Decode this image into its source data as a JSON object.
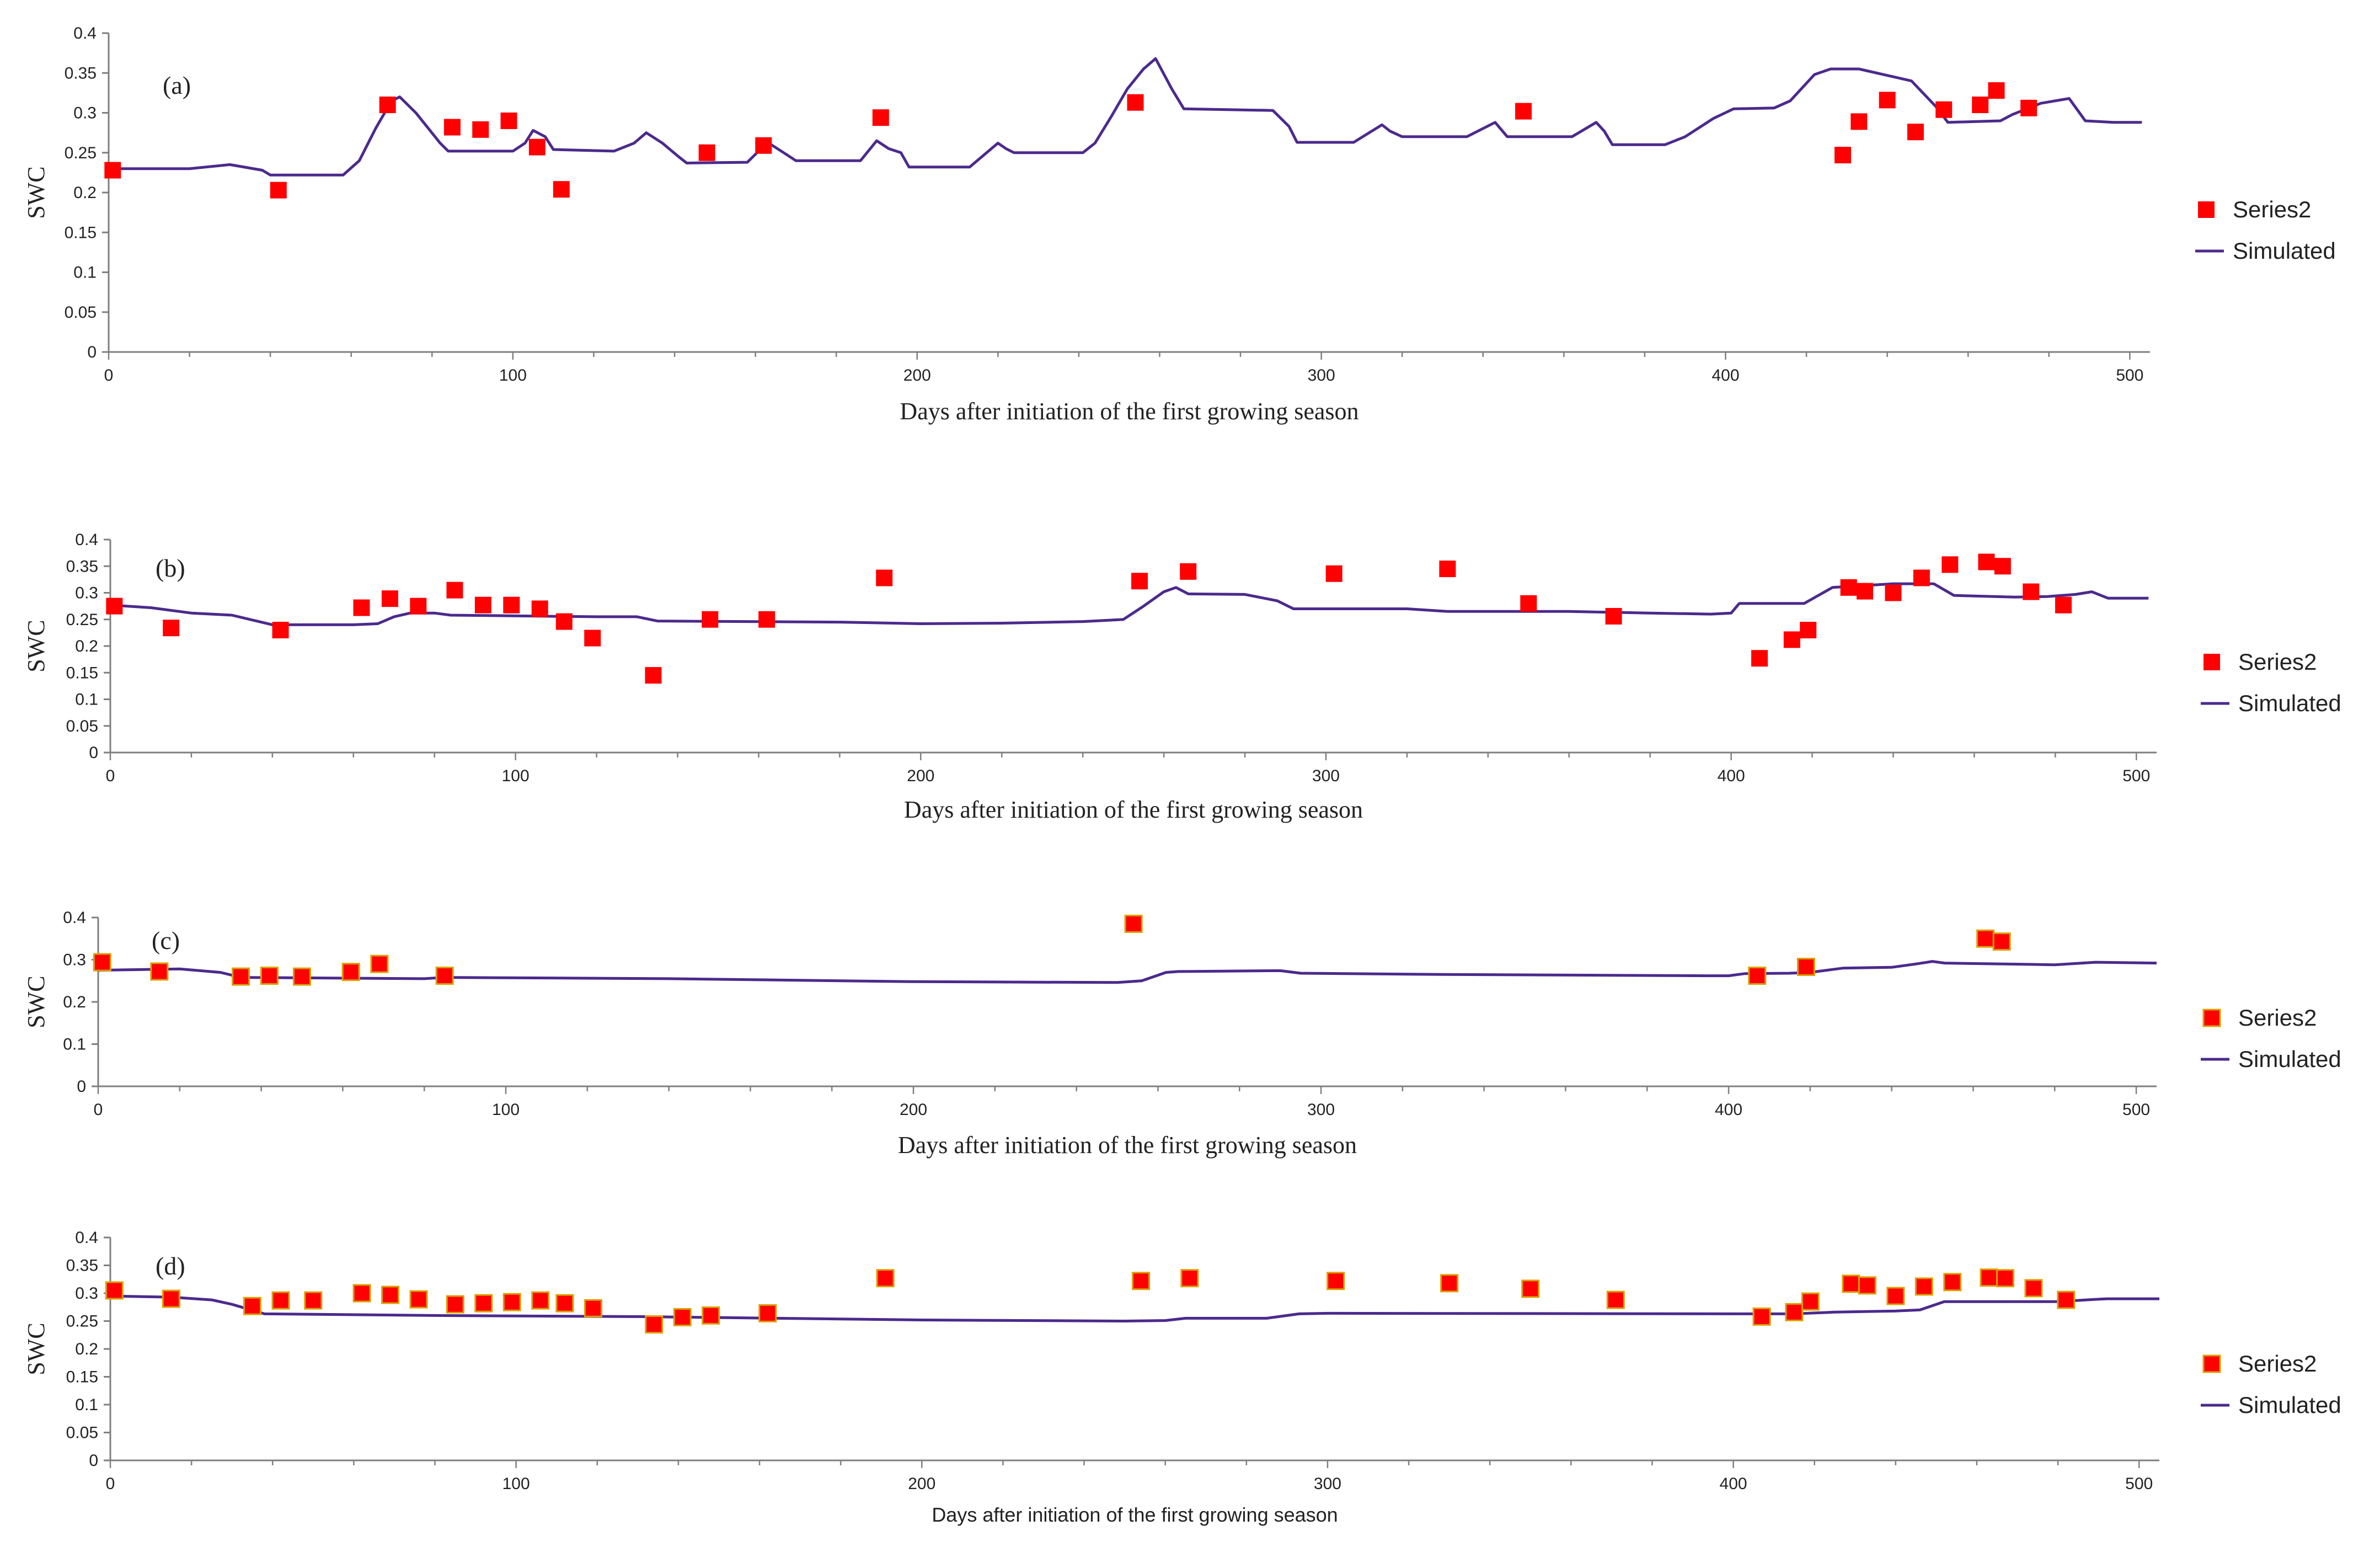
{
  "figure": {
    "colors": {
      "observed": "#ff0000",
      "observed_edge_cd": "#d9a000",
      "simulated": "#4b2a8c",
      "axis": "#7f7f7f"
    }
  },
  "chart_data": [
    {
      "type": "scatter+line",
      "panel_label": "(a)",
      "ylabel": "SWC",
      "xlabel": "Days after initiation of the first growing season",
      "xlim": [
        0,
        505
      ],
      "ylim": [
        0,
        0.4
      ],
      "xticks": [
        "0",
        "100",
        "200",
        "300",
        "400",
        "500"
      ],
      "yticks": [
        "0",
        "0.05",
        "0.1",
        "0.15",
        "0.2",
        "0.25",
        "0.3",
        "0.35",
        "0.4"
      ],
      "legend": {
        "position": "right",
        "observed": "Series2",
        "simulated": "Simulated"
      },
      "observed": [
        [
          1,
          0.228
        ],
        [
          42,
          0.203
        ],
        [
          69,
          0.31
        ],
        [
          85,
          0.282
        ],
        [
          92,
          0.279
        ],
        [
          99,
          0.29
        ],
        [
          106,
          0.257
        ],
        [
          112,
          0.204
        ],
        [
          148,
          0.25
        ],
        [
          162,
          0.259
        ],
        [
          191,
          0.294
        ],
        [
          254,
          0.313
        ],
        [
          350,
          0.302
        ],
        [
          429,
          0.247
        ],
        [
          433,
          0.289
        ],
        [
          440,
          0.316
        ],
        [
          447,
          0.276
        ],
        [
          454,
          0.304
        ],
        [
          463,
          0.31
        ],
        [
          467,
          0.328
        ],
        [
          475,
          0.306
        ]
      ],
      "simulated": [
        [
          0,
          0.23
        ],
        [
          20,
          0.23
        ],
        [
          30,
          0.235
        ],
        [
          38,
          0.228
        ],
        [
          40,
          0.222
        ],
        [
          58,
          0.222
        ],
        [
          62,
          0.24
        ],
        [
          66,
          0.28
        ],
        [
          70,
          0.315
        ],
        [
          72,
          0.32
        ],
        [
          76,
          0.3
        ],
        [
          82,
          0.262
        ],
        [
          84,
          0.252
        ],
        [
          100,
          0.252
        ],
        [
          103,
          0.262
        ],
        [
          105,
          0.278
        ],
        [
          108,
          0.27
        ],
        [
          110,
          0.254
        ],
        [
          125,
          0.252
        ],
        [
          130,
          0.262
        ],
        [
          133,
          0.275
        ],
        [
          137,
          0.262
        ],
        [
          141,
          0.245
        ],
        [
          143,
          0.237
        ],
        [
          158,
          0.238
        ],
        [
          163,
          0.263
        ],
        [
          167,
          0.25
        ],
        [
          170,
          0.24
        ],
        [
          186,
          0.24
        ],
        [
          190,
          0.265
        ],
        [
          193,
          0.255
        ],
        [
          196,
          0.25
        ],
        [
          198,
          0.232
        ],
        [
          213,
          0.232
        ],
        [
          220,
          0.262
        ],
        [
          222,
          0.255
        ],
        [
          224,
          0.25
        ],
        [
          241,
          0.25
        ],
        [
          244,
          0.262
        ],
        [
          248,
          0.295
        ],
        [
          252,
          0.33
        ],
        [
          256,
          0.355
        ],
        [
          259,
          0.368
        ],
        [
          263,
          0.33
        ],
        [
          266,
          0.305
        ],
        [
          288,
          0.303
        ],
        [
          292,
          0.283
        ],
        [
          294,
          0.263
        ],
        [
          308,
          0.263
        ],
        [
          315,
          0.285
        ],
        [
          317,
          0.277
        ],
        [
          320,
          0.27
        ],
        [
          336,
          0.27
        ],
        [
          343,
          0.288
        ],
        [
          346,
          0.27
        ],
        [
          362,
          0.27
        ],
        [
          368,
          0.288
        ],
        [
          370,
          0.277
        ],
        [
          372,
          0.26
        ],
        [
          385,
          0.26
        ],
        [
          390,
          0.27
        ],
        [
          397,
          0.293
        ],
        [
          402,
          0.305
        ],
        [
          412,
          0.306
        ],
        [
          416,
          0.315
        ],
        [
          422,
          0.348
        ],
        [
          426,
          0.355
        ],
        [
          433,
          0.355
        ],
        [
          446,
          0.34
        ],
        [
          452,
          0.308
        ],
        [
          455,
          0.288
        ],
        [
          468,
          0.29
        ],
        [
          471,
          0.298
        ],
        [
          478,
          0.312
        ],
        [
          485,
          0.318
        ],
        [
          489,
          0.29
        ],
        [
          496,
          0.288
        ],
        [
          503,
          0.288
        ]
      ]
    },
    {
      "type": "scatter+line",
      "panel_label": "(b)",
      "ylabel": "SWC",
      "xlabel": "Days after initiation of the first growing season",
      "xlim": [
        0,
        505
      ],
      "ylim": [
        0,
        0.4
      ],
      "xticks": [
        "0",
        "100",
        "200",
        "300",
        "400",
        "500"
      ],
      "yticks": [
        "0",
        "0.05",
        "0.1",
        "0.15",
        "0.2",
        "0.25",
        "0.3",
        "0.35",
        "0.4"
      ],
      "legend": {
        "position": "right",
        "observed": "Series2",
        "simulated": "Simulated"
      },
      "observed": [
        [
          1,
          0.275
        ],
        [
          15,
          0.234
        ],
        [
          42,
          0.23
        ],
        [
          62,
          0.272
        ],
        [
          69,
          0.289
        ],
        [
          76,
          0.275
        ],
        [
          85,
          0.305
        ],
        [
          92,
          0.277
        ],
        [
          99,
          0.277
        ],
        [
          106,
          0.27
        ],
        [
          112,
          0.246
        ],
        [
          119,
          0.215
        ],
        [
          134,
          0.145
        ],
        [
          148,
          0.25
        ],
        [
          162,
          0.25
        ],
        [
          191,
          0.328
        ],
        [
          254,
          0.322
        ],
        [
          266,
          0.34
        ],
        [
          302,
          0.336
        ],
        [
          330,
          0.345
        ],
        [
          350,
          0.28
        ],
        [
          371,
          0.256
        ],
        [
          407,
          0.177
        ],
        [
          415,
          0.212
        ],
        [
          419,
          0.23
        ],
        [
          429,
          0.31
        ],
        [
          433,
          0.303
        ],
        [
          440,
          0.3
        ],
        [
          447,
          0.328
        ],
        [
          454,
          0.353
        ],
        [
          463,
          0.358
        ],
        [
          467,
          0.35
        ],
        [
          474,
          0.302
        ],
        [
          482,
          0.277
        ]
      ],
      "simulated": [
        [
          0,
          0.277
        ],
        [
          10,
          0.272
        ],
        [
          20,
          0.262
        ],
        [
          30,
          0.258
        ],
        [
          40,
          0.24
        ],
        [
          60,
          0.24
        ],
        [
          66,
          0.242
        ],
        [
          70,
          0.255
        ],
        [
          74,
          0.262
        ],
        [
          80,
          0.262
        ],
        [
          84,
          0.258
        ],
        [
          120,
          0.255
        ],
        [
          130,
          0.255
        ],
        [
          135,
          0.247
        ],
        [
          180,
          0.245
        ],
        [
          200,
          0.242
        ],
        [
          220,
          0.243
        ],
        [
          240,
          0.246
        ],
        [
          250,
          0.25
        ],
        [
          255,
          0.275
        ],
        [
          260,
          0.302
        ],
        [
          263,
          0.31
        ],
        [
          266,
          0.298
        ],
        [
          280,
          0.297
        ],
        [
          288,
          0.285
        ],
        [
          292,
          0.27
        ],
        [
          320,
          0.27
        ],
        [
          330,
          0.265
        ],
        [
          360,
          0.265
        ],
        [
          380,
          0.262
        ],
        [
          395,
          0.26
        ],
        [
          400,
          0.262
        ],
        [
          402,
          0.28
        ],
        [
          418,
          0.28
        ],
        [
          425,
          0.31
        ],
        [
          440,
          0.317
        ],
        [
          450,
          0.317
        ],
        [
          455,
          0.295
        ],
        [
          470,
          0.292
        ],
        [
          478,
          0.293
        ],
        [
          485,
          0.297
        ],
        [
          489,
          0.302
        ],
        [
          493,
          0.29
        ],
        [
          503,
          0.29
        ]
      ]
    },
    {
      "type": "scatter+line",
      "panel_label": "(c)",
      "ylabel": "SWC",
      "xlabel": "Days after initiation of the first growing season",
      "xlim": [
        0,
        505
      ],
      "ylim": [
        0,
        0.4
      ],
      "xticks": [
        "0",
        "100",
        "200",
        "300",
        "400",
        "500"
      ],
      "yticks": [
        "0",
        "0.1",
        "0.2",
        "0.3",
        "0.4"
      ],
      "legend": {
        "position": "right",
        "observed": "Series2",
        "simulated": "Simulated"
      },
      "observed": [
        [
          1,
          0.294
        ],
        [
          15,
          0.272
        ],
        [
          35,
          0.26
        ],
        [
          42,
          0.262
        ],
        [
          50,
          0.26
        ],
        [
          62,
          0.271
        ],
        [
          69,
          0.29
        ],
        [
          85,
          0.262
        ],
        [
          254,
          0.385
        ],
        [
          407,
          0.262
        ],
        [
          419,
          0.283
        ],
        [
          463,
          0.35
        ],
        [
          467,
          0.343
        ]
      ],
      "simulated": [
        [
          0,
          0.275
        ],
        [
          20,
          0.278
        ],
        [
          30,
          0.27
        ],
        [
          35,
          0.258
        ],
        [
          80,
          0.255
        ],
        [
          85,
          0.258
        ],
        [
          140,
          0.255
        ],
        [
          200,
          0.248
        ],
        [
          250,
          0.246
        ],
        [
          256,
          0.25
        ],
        [
          262,
          0.27
        ],
        [
          265,
          0.272
        ],
        [
          290,
          0.274
        ],
        [
          295,
          0.268
        ],
        [
          330,
          0.265
        ],
        [
          395,
          0.262
        ],
        [
          400,
          0.262
        ],
        [
          404,
          0.267
        ],
        [
          415,
          0.268
        ],
        [
          420,
          0.27
        ],
        [
          428,
          0.28
        ],
        [
          440,
          0.282
        ],
        [
          446,
          0.29
        ],
        [
          450,
          0.296
        ],
        [
          453,
          0.292
        ],
        [
          480,
          0.288
        ],
        [
          490,
          0.294
        ],
        [
          505,
          0.292
        ]
      ]
    },
    {
      "type": "scatter+line",
      "panel_label": "(d)",
      "ylabel": "SWC",
      "xlabel": "Days after initiation of the first growing season",
      "xlim": [
        0,
        505
      ],
      "ylim": [
        0,
        0.4
      ],
      "xticks": [
        "0",
        "100",
        "200",
        "300",
        "400",
        "500"
      ],
      "yticks": [
        "0",
        "0.05",
        "0.1",
        "0.15",
        "0.2",
        "0.25",
        "0.3",
        "0.35",
        "0.4"
      ],
      "legend": {
        "position": "right",
        "observed": "Series2",
        "simulated": "Simulated"
      },
      "observed": [
        [
          1,
          0.305
        ],
        [
          15,
          0.29
        ],
        [
          35,
          0.277
        ],
        [
          42,
          0.287
        ],
        [
          50,
          0.287
        ],
        [
          62,
          0.3
        ],
        [
          69,
          0.297
        ],
        [
          76,
          0.289
        ],
        [
          85,
          0.28
        ],
        [
          92,
          0.282
        ],
        [
          99,
          0.284
        ],
        [
          106,
          0.287
        ],
        [
          112,
          0.282
        ],
        [
          119,
          0.273
        ],
        [
          134,
          0.244
        ],
        [
          141,
          0.257
        ],
        [
          148,
          0.26
        ],
        [
          162,
          0.264
        ],
        [
          191,
          0.327
        ],
        [
          254,
          0.322
        ],
        [
          266,
          0.327
        ],
        [
          302,
          0.322
        ],
        [
          330,
          0.318
        ],
        [
          350,
          0.308
        ],
        [
          371,
          0.288
        ],
        [
          407,
          0.258
        ],
        [
          415,
          0.266
        ],
        [
          419,
          0.285
        ],
        [
          429,
          0.317
        ],
        [
          433,
          0.314
        ],
        [
          440,
          0.295
        ],
        [
          447,
          0.312
        ],
        [
          454,
          0.32
        ],
        [
          463,
          0.328
        ],
        [
          467,
          0.327
        ],
        [
          474,
          0.309
        ],
        [
          482,
          0.288
        ]
      ],
      "simulated": [
        [
          0,
          0.295
        ],
        [
          15,
          0.293
        ],
        [
          25,
          0.288
        ],
        [
          30,
          0.28
        ],
        [
          38,
          0.263
        ],
        [
          80,
          0.26
        ],
        [
          130,
          0.258
        ],
        [
          200,
          0.252
        ],
        [
          250,
          0.25
        ],
        [
          260,
          0.251
        ],
        [
          265,
          0.255
        ],
        [
          285,
          0.255
        ],
        [
          293,
          0.263
        ],
        [
          300,
          0.264
        ],
        [
          400,
          0.263
        ],
        [
          415,
          0.263
        ],
        [
          425,
          0.266
        ],
        [
          440,
          0.268
        ],
        [
          446,
          0.27
        ],
        [
          452,
          0.285
        ],
        [
          480,
          0.285
        ],
        [
          487,
          0.288
        ],
        [
          492,
          0.29
        ],
        [
          505,
          0.29
        ]
      ]
    }
  ]
}
